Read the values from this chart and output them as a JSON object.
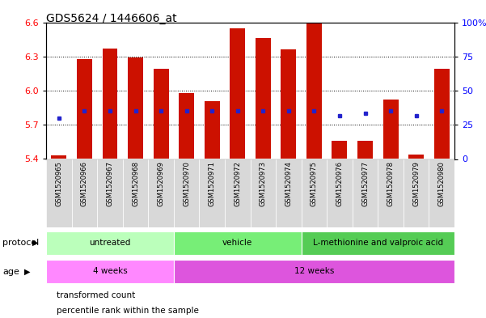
{
  "title": "GDS5624 / 1446606_at",
  "samples": [
    "GSM1520965",
    "GSM1520966",
    "GSM1520967",
    "GSM1520968",
    "GSM1520969",
    "GSM1520970",
    "GSM1520971",
    "GSM1520972",
    "GSM1520973",
    "GSM1520974",
    "GSM1520975",
    "GSM1520976",
    "GSM1520977",
    "GSM1520978",
    "GSM1520979",
    "GSM1520980"
  ],
  "bar_tops": [
    5.43,
    6.28,
    6.37,
    6.29,
    6.19,
    5.98,
    5.91,
    6.55,
    6.46,
    6.36,
    6.6,
    5.56,
    5.56,
    5.92,
    5.44,
    6.19
  ],
  "bar_bottoms": [
    5.4,
    5.4,
    5.4,
    5.4,
    5.4,
    5.4,
    5.4,
    5.4,
    5.4,
    5.4,
    5.4,
    5.4,
    5.4,
    5.4,
    5.4,
    5.4
  ],
  "percentile_vals": [
    5.762,
    5.82,
    5.82,
    5.82,
    5.82,
    5.82,
    5.82,
    5.82,
    5.82,
    5.82,
    5.82,
    5.78,
    5.8,
    5.82,
    5.78,
    5.82
  ],
  "bar_color": "#cc1100",
  "percentile_color": "#2222cc",
  "ylim": [
    5.4,
    6.6
  ],
  "yticks_left": [
    5.4,
    5.7,
    6.0,
    6.3,
    6.6
  ],
  "yticks_right": [
    0,
    25,
    50,
    75,
    100
  ],
  "right_ylim": [
    0,
    100
  ],
  "protocol_groups": [
    {
      "label": "untreated",
      "start": 0,
      "end": 5,
      "color": "#bbffbb"
    },
    {
      "label": "vehicle",
      "start": 5,
      "end": 10,
      "color": "#77ee77"
    },
    {
      "label": "L-methionine and valproic acid",
      "start": 10,
      "end": 16,
      "color": "#55cc55"
    }
  ],
  "age_groups": [
    {
      "label": "4 weeks",
      "start": 0,
      "end": 5,
      "color": "#ff88ff"
    },
    {
      "label": "12 weeks",
      "start": 5,
      "end": 16,
      "color": "#dd55dd"
    }
  ],
  "protocol_label": "protocol",
  "age_label": "age",
  "legend_items": [
    {
      "label": "transformed count",
      "color": "#cc1100"
    },
    {
      "label": "percentile rank within the sample",
      "color": "#2222cc"
    }
  ],
  "xticklabel_bg": "#d8d8d8"
}
